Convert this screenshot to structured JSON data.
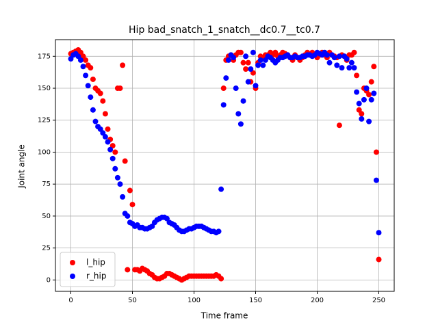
{
  "chart_data": {
    "type": "scatter",
    "title": "Hip bad_snatch_1_snatch__dc0.7__tc0.7",
    "xlabel": "Time frame",
    "ylabel": "Joint angle",
    "x": [
      0,
      2,
      4,
      6,
      8,
      10,
      12,
      14,
      16,
      18,
      20,
      22,
      24,
      26,
      28,
      30,
      32,
      34,
      36,
      38,
      40,
      42,
      44,
      46,
      48,
      50,
      52,
      54,
      56,
      58,
      60,
      62,
      64,
      66,
      68,
      70,
      72,
      74,
      76,
      78,
      80,
      82,
      84,
      86,
      88,
      90,
      92,
      94,
      96,
      98,
      100,
      102,
      104,
      106,
      108,
      110,
      112,
      114,
      116,
      118,
      120,
      122,
      124,
      126,
      128,
      130,
      132,
      134,
      136,
      138,
      140,
      142,
      144,
      146,
      148,
      150,
      152,
      154,
      156,
      158,
      160,
      162,
      164,
      166,
      168,
      170,
      172,
      174,
      176,
      178,
      180,
      182,
      184,
      186,
      188,
      190,
      192,
      194,
      196,
      198,
      200,
      202,
      204,
      206,
      208,
      210,
      212,
      214,
      216,
      218,
      220,
      222,
      224,
      226,
      228,
      230,
      232,
      234,
      236,
      238,
      240,
      242,
      244,
      246,
      248,
      250
    ],
    "series": [
      {
        "name": "l_hip",
        "color": "red",
        "values": [
          177,
          178,
          179,
          180,
          178,
          175,
          172,
          168,
          166,
          157,
          150,
          148,
          146,
          140,
          130,
          118,
          110,
          105,
          100,
          150,
          150,
          168,
          93,
          8,
          70,
          59,
          8,
          8,
          7,
          9,
          8,
          7,
          5,
          4,
          2,
          1,
          1,
          2,
          3,
          5,
          5,
          4,
          3,
          2,
          1,
          0,
          1,
          2,
          3,
          3,
          3,
          3,
          3,
          3,
          3,
          3,
          3,
          3,
          3,
          4,
          3,
          1,
          150,
          172,
          175,
          176,
          172,
          176,
          178,
          178,
          170,
          165,
          170,
          155,
          162,
          150,
          170,
          175,
          174,
          176,
          176,
          178,
          176,
          178,
          175,
          176,
          178,
          177,
          176,
          174,
          172,
          176,
          174,
          172,
          174,
          176,
          178,
          176,
          178,
          176,
          174,
          176,
          178,
          176,
          174,
          178,
          176,
          175,
          174,
          121,
          176,
          175,
          172,
          176,
          176,
          178,
          160,
          133,
          130,
          150,
          148,
          145,
          155,
          167,
          100,
          16
        ]
      },
      {
        "name": "r_hip",
        "color": "blue",
        "values": [
          173,
          176,
          177,
          175,
          172,
          167,
          160,
          152,
          143,
          133,
          124,
          120,
          118,
          115,
          112,
          108,
          102,
          95,
          87,
          80,
          75,
          65,
          52,
          50,
          45,
          44,
          42,
          43,
          41,
          41,
          40,
          40,
          41,
          42,
          45,
          47,
          48,
          49,
          49,
          48,
          45,
          44,
          43,
          41,
          39,
          38,
          38,
          39,
          40,
          40,
          41,
          42,
          42,
          42,
          41,
          40,
          39,
          38,
          38,
          37,
          38,
          71,
          137,
          158,
          172,
          176,
          174,
          150,
          130,
          122,
          140,
          175,
          155,
          165,
          178,
          152,
          168,
          172,
          168,
          172,
          175,
          174,
          172,
          170,
          172,
          174,
          174,
          175,
          176,
          174,
          174,
          175,
          174,
          174,
          175,
          175,
          176,
          176,
          175,
          176,
          178,
          177,
          176,
          178,
          176,
          170,
          176,
          174,
          168,
          175,
          166,
          175,
          173,
          166,
          170,
          166,
          147,
          138,
          126,
          141,
          150,
          124,
          141,
          146,
          78,
          37
        ]
      }
    ],
    "xlim": [
      -12.5,
      262.5
    ],
    "ylim": [
      -8.9,
      188
    ],
    "xticks": [
      0,
      50,
      100,
      150,
      200,
      250
    ],
    "yticks": [
      0,
      25,
      50,
      75,
      100,
      125,
      150,
      175
    ],
    "grid": true,
    "legend": "lower left"
  }
}
